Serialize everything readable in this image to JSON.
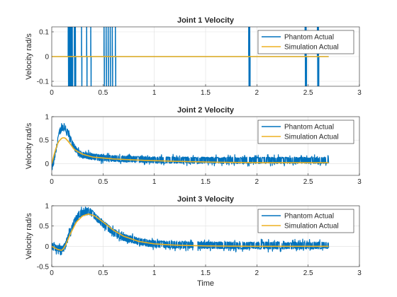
{
  "figure": {
    "xlabel": "Time"
  },
  "colors": {
    "phantom": "#0072BD",
    "simulation": "#EDB120",
    "grid": "#dfdfdf",
    "axis": "#262626"
  },
  "chart_data": [
    {
      "type": "line",
      "title": "Joint 1 Velocity",
      "xlabel": "",
      "ylabel": "Velocity rad/s",
      "xlim": [
        0,
        3
      ],
      "ylim": [
        -0.12,
        0.12
      ],
      "xticks": [
        "0",
        "0.5",
        "1",
        "1.5",
        "2",
        "2.5",
        "3"
      ],
      "yticks": [
        "-0.1",
        "0",
        "0.1"
      ],
      "grid": true,
      "legend": "top-right",
      "series": [
        {
          "name": "Phantom Actual",
          "spikes_x": [
            0.16,
            0.17,
            0.18,
            0.19,
            0.2,
            0.22,
            0.23,
            0.29,
            0.34,
            0.38,
            0.51,
            0.53,
            0.55,
            0.57,
            0.59,
            0.62,
            1.92,
            1.93,
            2.47,
            2.48,
            2.59,
            2.6
          ],
          "baseline": 0,
          "x_end": 2.7
        },
        {
          "name": "Simulation Actual",
          "x": [
            0,
            2.7
          ],
          "y": [
            0,
            0
          ]
        }
      ]
    },
    {
      "type": "line",
      "title": "Joint 2 Velocity",
      "xlabel": "",
      "ylabel": "Velocity rad/s",
      "xlim": [
        0,
        3
      ],
      "ylim": [
        -0.25,
        1
      ],
      "xticks": [
        "0",
        "0.5",
        "1",
        "1.5",
        "2",
        "2.5",
        "3"
      ],
      "yticks": [
        "0",
        "0.5",
        "1"
      ],
      "grid": true,
      "legend": "top-right",
      "series": [
        {
          "name": "Phantom Actual",
          "x": [
            0,
            0.02,
            0.05,
            0.08,
            0.12,
            0.16,
            0.2,
            0.25,
            0.3,
            0.4,
            0.5,
            0.7,
            1.0,
            1.5,
            2.0,
            2.7
          ],
          "y": [
            -0.1,
            0.05,
            0.4,
            0.7,
            0.8,
            0.65,
            0.42,
            0.25,
            0.18,
            0.15,
            0.12,
            0.1,
            0.08,
            0.07,
            0.07,
            0.07
          ],
          "noise": 0.07
        },
        {
          "name": "Simulation Actual",
          "x": [
            0,
            0.03,
            0.06,
            0.1,
            0.13,
            0.17,
            0.22,
            0.3,
            0.4,
            0.6,
            0.9,
            1.2,
            1.6,
            2.0,
            2.7
          ],
          "y": [
            0,
            0.25,
            0.45,
            0.55,
            0.55,
            0.45,
            0.3,
            0.2,
            0.14,
            0.1,
            0.07,
            0.05,
            0.03,
            0.02,
            0.02
          ]
        }
      ]
    },
    {
      "type": "line",
      "title": "Joint 3 Velocity",
      "xlabel": "Time",
      "ylabel": "Velocity rad/s",
      "xlim": [
        0,
        3
      ],
      "ylim": [
        -0.5,
        1
      ],
      "xticks": [
        "0",
        "0.5",
        "1",
        "1.5",
        "2",
        "2.5",
        "3"
      ],
      "yticks": [
        "-0.5",
        "0",
        "0.5",
        "1"
      ],
      "grid": true,
      "legend": "top-right",
      "series": [
        {
          "name": "Phantom Actual",
          "x": [
            0,
            0.06,
            0.1,
            0.13,
            0.17,
            0.22,
            0.27,
            0.33,
            0.38,
            0.43,
            0.5,
            0.6,
            0.7,
            0.85,
            1.0,
            1.2,
            1.4,
            1.8,
            2.2,
            2.7
          ],
          "y": [
            0,
            -0.05,
            -0.08,
            0,
            0.3,
            0.6,
            0.8,
            0.85,
            0.85,
            0.72,
            0.55,
            0.35,
            0.22,
            0.12,
            0.06,
            0.04,
            0.03,
            0.02,
            0.02,
            0.02
          ],
          "noise": 0.09
        },
        {
          "name": "Simulation Actual",
          "x": [
            0,
            0.06,
            0.1,
            0.13,
            0.18,
            0.24,
            0.3,
            0.36,
            0.42,
            0.5,
            0.6,
            0.7,
            0.85,
            1.0,
            1.2,
            1.5,
            2.0,
            2.7
          ],
          "y": [
            0,
            -0.08,
            -0.1,
            0,
            0.3,
            0.6,
            0.75,
            0.8,
            0.75,
            0.6,
            0.4,
            0.25,
            0.12,
            0.06,
            0.03,
            0.01,
            0,
            0
          ]
        }
      ]
    }
  ]
}
